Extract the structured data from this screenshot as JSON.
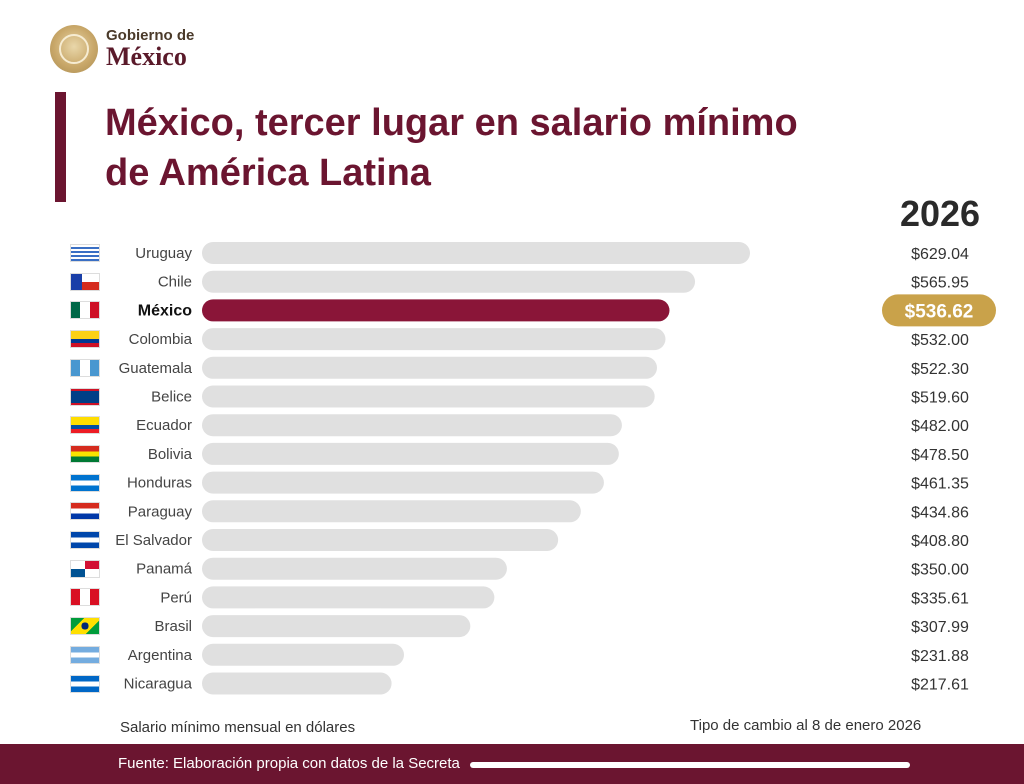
{
  "header": {
    "logo_small": "Gobierno de",
    "logo_big": "México",
    "title_line1": "México, tercer lugar en salario mínimo",
    "title_line2": "de América Latina",
    "year": "2026"
  },
  "colors": {
    "bar": "#e0e0e0",
    "highlight_bar": "#8a1538",
    "highlight_badge": "#c9a24a",
    "brand": "#6b1530"
  },
  "chart_data": {
    "type": "bar",
    "orientation": "horizontal",
    "highlight": "México",
    "categories": [
      "Uruguay",
      "Chile",
      "México",
      "Colombia",
      "Guatemala",
      "Belice",
      "Ecuador",
      "Bolivia",
      "Honduras",
      "Paraguay",
      "El Salvador",
      "Panamá",
      "Perú",
      "Brasil",
      "Argentina",
      "Nicaragua"
    ],
    "values": [
      629.04,
      565.95,
      536.62,
      532.0,
      522.3,
      519.6,
      482.0,
      478.5,
      461.35,
      434.86,
      408.8,
      350.0,
      335.61,
      307.99,
      231.88,
      217.61
    ],
    "value_labels": [
      "$629.04",
      "$565.95",
      "$536.62",
      "$532.00",
      "$522.30",
      "$519.60",
      "$482.00",
      "$478.50",
      "$461.35",
      "$434.86",
      "$408.80",
      "$350.00",
      "$335.61",
      "$307.99",
      "$231.88",
      "$217.61"
    ],
    "flags": [
      "uruguay-flag-icon",
      "chile-flag-icon",
      "mexico-flag-icon",
      "colombia-flag-icon",
      "guatemala-flag-icon",
      "belize-flag-icon",
      "ecuador-flag-icon",
      "bolivia-flag-icon",
      "honduras-flag-icon",
      "paraguay-flag-icon",
      "el-salvador-flag-icon",
      "panama-flag-icon",
      "peru-flag-icon",
      "brazil-flag-icon",
      "argentina-flag-icon",
      "nicaragua-flag-icon"
    ],
    "xlim": [
      0,
      660
    ],
    "grid": false
  },
  "notes": {
    "left": "Salario mínimo mensual en dólares",
    "right": "Tipo de cambio al 8 de enero 2026"
  },
  "footer": {
    "source": "Fuente: Elaboración propia con datos de la Secreta"
  }
}
